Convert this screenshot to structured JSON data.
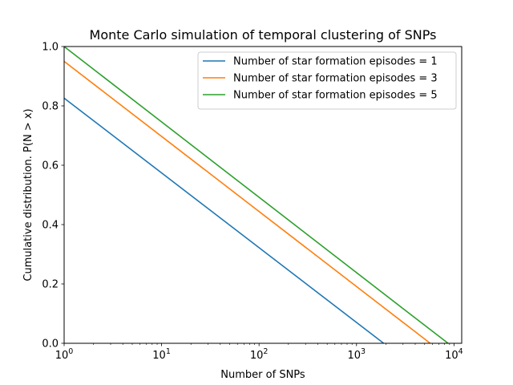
{
  "chart_data": {
    "type": "line",
    "title": "Monte Carlo simulation of temporal clustering of SNPs",
    "xlabel": "Number of SNPs",
    "ylabel": "Cumulative distribution. P(N > x)",
    "xscale": "log",
    "xlim": [
      1,
      12000
    ],
    "ylim": [
      0,
      1.0
    ],
    "x_ticks": [
      {
        "value": 1,
        "base": "10",
        "exp": "0"
      },
      {
        "value": 10,
        "base": "10",
        "exp": "1"
      },
      {
        "value": 100,
        "base": "10",
        "exp": "2"
      },
      {
        "value": 1000,
        "base": "10",
        "exp": "3"
      },
      {
        "value": 10000,
        "base": "10",
        "exp": "4"
      }
    ],
    "y_ticks": [
      "0.0",
      "0.2",
      "0.4",
      "0.6",
      "0.8",
      "1.0"
    ],
    "grid": false,
    "legend_position": "top-right",
    "series": [
      {
        "name": "Number of star formation episodes = 1",
        "color": "#1f77b4",
        "x": [
          1,
          1900
        ],
        "y": [
          0.826,
          0.0
        ]
      },
      {
        "name": "Number of star formation episodes = 3",
        "color": "#ff7f0e",
        "x": [
          1,
          5700
        ],
        "y": [
          0.95,
          0.0
        ]
      },
      {
        "name": "Number of star formation episodes = 5",
        "color": "#2ca02c",
        "x": [
          1,
          3000,
          8700
        ],
        "y": [
          1.0,
          0.117,
          0.0
        ]
      }
    ]
  }
}
